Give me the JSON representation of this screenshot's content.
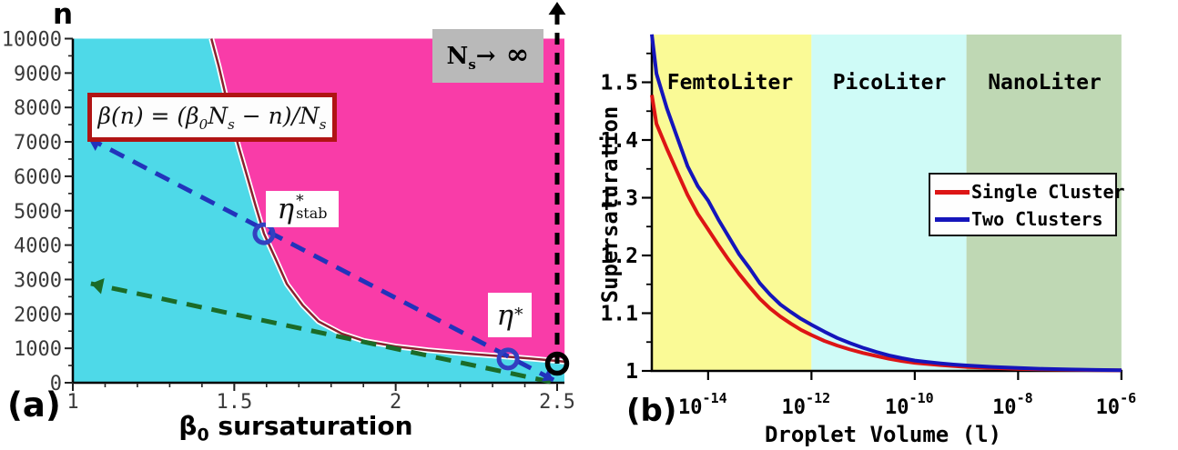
{
  "figure": {
    "background": "#ffffff"
  },
  "chart_data": [
    {
      "id": "a",
      "type": "area",
      "panel_label": "(a)",
      "ylabel": "n",
      "xlabel_parts": {
        "beta": "β",
        "sub": "0",
        "rest": " sursaturation"
      },
      "xlim": [
        1,
        2.5
      ],
      "ylim": [
        0,
        10000
      ],
      "x_tick_labels": [
        "1",
        "1.5",
        "2",
        "2.5"
      ],
      "x_ticks": [
        1,
        1.5,
        2,
        2.5
      ],
      "x_minor_step": 0.1,
      "y_tick_labels": [
        "0",
        "1000",
        "2000",
        "3000",
        "4000",
        "5000",
        "6000",
        "7000",
        "8000",
        "9000",
        "10000"
      ],
      "y_ticks": [
        0,
        1000,
        2000,
        3000,
        4000,
        5000,
        6000,
        7000,
        8000,
        9000,
        10000
      ],
      "y_minor_step": 500,
      "regions": [
        {
          "name": "stable-region",
          "color": "#4ED9E8"
        },
        {
          "name": "nucleation-region",
          "color": "#F93CA8"
        }
      ],
      "boundary": {
        "name": "phase-boundary",
        "color": "#8B2030",
        "halo_color": "#ffffff",
        "points": [
          [
            1.429,
            10000
          ],
          [
            1.452,
            9200
          ],
          [
            1.472,
            8400
          ],
          [
            1.492,
            7600
          ],
          [
            1.515,
            6800
          ],
          [
            1.54,
            6000
          ],
          [
            1.566,
            5150
          ],
          [
            1.592,
            4330
          ],
          [
            1.628,
            3600
          ],
          [
            1.663,
            2870
          ],
          [
            1.712,
            2250
          ],
          [
            1.761,
            1780
          ],
          [
            1.832,
            1430
          ],
          [
            1.902,
            1215
          ],
          [
            2.0,
            1055
          ],
          [
            2.1,
            945
          ],
          [
            2.2,
            860
          ],
          [
            2.3,
            790
          ],
          [
            2.4,
            715
          ],
          [
            2.5,
            635
          ],
          [
            2.523,
            610
          ]
        ]
      },
      "annotations": {
        "formula_parts": {
          "p1": "β(n) = (β",
          "s1": "0",
          "p2": "N",
          "s2": "s",
          "p3": " − n)/N",
          "s3": "s"
        },
        "ns_limit_parts": {
          "n": "N",
          "s": "s",
          "arrow": "→",
          "inf": "∞"
        },
        "eta_stab_parts": {
          "base": "η",
          "sup": "*",
          "sub": "stab"
        },
        "eta_star_parts": {
          "base": "η",
          "sup": "*"
        }
      },
      "arrows": [
        {
          "name": "green-trajectory-arrow",
          "color": "#1B6B28",
          "from": [
            2.48,
            26
          ],
          "to": [
            1.056,
            2880
          ],
          "dash": "17 11",
          "width": 5,
          "head": "end"
        },
        {
          "name": "blue-trajectory-arrow",
          "color": "#2233BB",
          "from": [
            2.489,
            79
          ],
          "to": [
            1.048,
            7108
          ],
          "dash": "17 11",
          "width": 5,
          "head": "both"
        }
      ],
      "vline": {
        "name": "ns-infinity-asymptote",
        "x": 2.5,
        "color": "#000000",
        "dash": "13 9",
        "width": 5
      },
      "markers": [
        {
          "name": "eta-stab-point",
          "shape": "open-circle",
          "color": "#3340C0",
          "at": [
            1.592,
            4330
          ],
          "r": 10,
          "stroke": 5
        },
        {
          "name": "eta-star-point",
          "shape": "open-circle",
          "color": "#3340C0",
          "at": [
            2.348,
            690
          ],
          "r": 10,
          "stroke": 5
        },
        {
          "name": "ns-infinity-point",
          "shape": "open-circle",
          "color": "#000000",
          "at": [
            2.5,
            555
          ],
          "r": 10.5,
          "stroke": 5.5
        }
      ]
    },
    {
      "id": "b",
      "type": "line",
      "panel_label": "(b)",
      "xlabel": "Droplet Volume (l)",
      "ylabel": "Supersaturation",
      "x_scale": "log",
      "xlim_log": [
        -15.09,
        -6
      ],
      "ylim": [
        1,
        1.583
      ],
      "x_tick_exponents": [
        -14,
        -12,
        -10,
        -8,
        -6
      ],
      "x_tick_base": "10",
      "y_tick_labels": [
        "1",
        "1.1",
        "1.2",
        "1.3",
        "1.4",
        "1.5"
      ],
      "y_ticks": [
        1,
        1.1,
        1.2,
        1.3,
        1.4,
        1.5
      ],
      "y_minor_step": 0.05,
      "bands": [
        {
          "label": "FemtoLiter",
          "color": "#FAFA96",
          "from_log": -15.09,
          "to_log": -12
        },
        {
          "label": "PicoLiter",
          "color": "#CFFBF7",
          "from_log": -12,
          "to_log": -9
        },
        {
          "label": "NanoLiter",
          "color": "#BFD8B4",
          "from_log": -9,
          "to_log": -6
        }
      ],
      "legend": {
        "position": "center-right",
        "entries": [
          {
            "label": "Single Cluster",
            "color": "#DD1515"
          },
          {
            "label": "Two Clusters",
            "color": "#1515BB"
          }
        ]
      },
      "series": [
        {
          "name": "Single Cluster",
          "color": "#DD1515",
          "width": 4,
          "points": [
            [
              -15.09,
              1.478
            ],
            [
              -15.0,
              1.428
            ],
            [
              -14.8,
              1.385
            ],
            [
              -14.6,
              1.345
            ],
            [
              -14.4,
              1.305
            ],
            [
              -14.2,
              1.272
            ],
            [
              -14,
              1.245
            ],
            [
              -13.8,
              1.218
            ],
            [
              -13.6,
              1.192
            ],
            [
              -13.4,
              1.168
            ],
            [
              -13.2,
              1.146
            ],
            [
              -13,
              1.125
            ],
            [
              -12.8,
              1.108
            ],
            [
              -12.6,
              1.094
            ],
            [
              -12.4,
              1.082
            ],
            [
              -12.2,
              1.071
            ],
            [
              -12,
              1.062
            ],
            [
              -11.75,
              1.052
            ],
            [
              -11.5,
              1.044
            ],
            [
              -11.25,
              1.037
            ],
            [
              -11,
              1.031
            ],
            [
              -10.75,
              1.026
            ],
            [
              -10.5,
              1.021
            ],
            [
              -10.25,
              1.017
            ],
            [
              -10,
              1.014
            ],
            [
              -9.75,
              1.012
            ],
            [
              -9.5,
              1.01
            ],
            [
              -9.25,
              1.0085
            ],
            [
              -9,
              1.007
            ],
            [
              -8.5,
              1.005
            ],
            [
              -8,
              1.0037
            ],
            [
              -7.5,
              1.0027
            ],
            [
              -7,
              1.002
            ],
            [
              -6.5,
              1.0014
            ],
            [
              -6,
              1.001
            ]
          ]
        },
        {
          "name": "Two Clusters",
          "color": "#1515BB",
          "width": 4,
          "points": [
            [
              -15.09,
              1.583
            ],
            [
              -15.0,
              1.515
            ],
            [
              -14.8,
              1.455
            ],
            [
              -14.6,
              1.405
            ],
            [
              -14.4,
              1.355
            ],
            [
              -14.2,
              1.32
            ],
            [
              -14,
              1.295
            ],
            [
              -13.8,
              1.262
            ],
            [
              -13.6,
              1.232
            ],
            [
              -13.4,
              1.202
            ],
            [
              -13.2,
              1.178
            ],
            [
              -13,
              1.152
            ],
            [
              -12.8,
              1.132
            ],
            [
              -12.6,
              1.115
            ],
            [
              -12.4,
              1.102
            ],
            [
              -12.2,
              1.09
            ],
            [
              -12,
              1.08
            ],
            [
              -11.75,
              1.068
            ],
            [
              -11.5,
              1.057
            ],
            [
              -11.25,
              1.048
            ],
            [
              -11,
              1.04
            ],
            [
              -10.75,
              1.033
            ],
            [
              -10.5,
              1.027
            ],
            [
              -10.25,
              1.022
            ],
            [
              -10,
              1.018
            ],
            [
              -9.75,
              1.0155
            ],
            [
              -9.5,
              1.013
            ],
            [
              -9.25,
              1.011
            ],
            [
              -9,
              1.0095
            ],
            [
              -8.5,
              1.007
            ],
            [
              -8,
              1.005
            ],
            [
              -7.5,
              1.0035
            ],
            [
              -7,
              1.0025
            ],
            [
              -6.5,
              1.0018
            ],
            [
              -6,
              1.0013
            ]
          ]
        }
      ]
    }
  ]
}
